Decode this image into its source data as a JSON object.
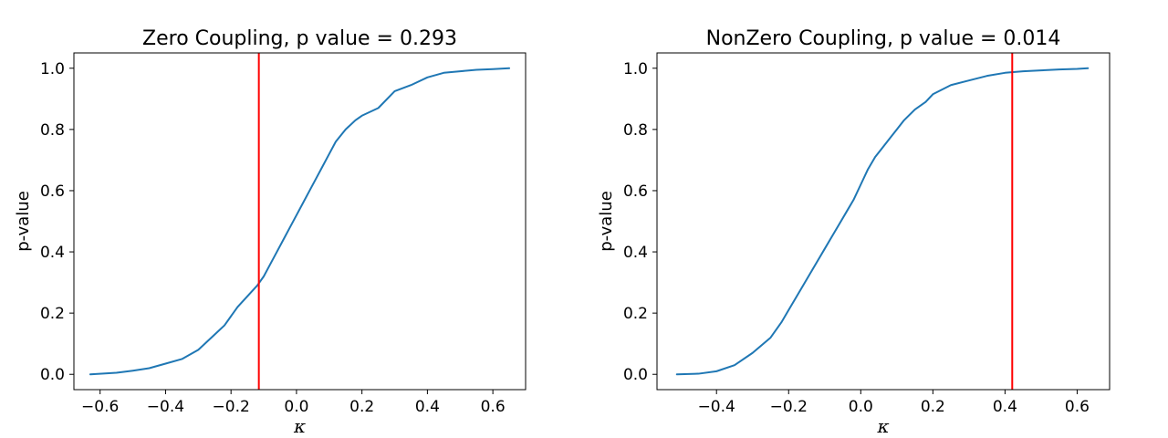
{
  "chart_data": [
    {
      "type": "line",
      "title": "Zero Coupling, p value = 0.293",
      "xlabel": "κ",
      "ylabel": "p-value",
      "xlim": [
        -0.68,
        0.7
      ],
      "ylim": [
        -0.05,
        1.05
      ],
      "xticks": [
        -0.6,
        -0.4,
        -0.2,
        0.0,
        0.2,
        0.4,
        0.6
      ],
      "xtick_labels": [
        "−0.6",
        "−0.4",
        "−0.2",
        "0.0",
        "0.2",
        "0.4",
        "0.6"
      ],
      "yticks": [
        0.0,
        0.2,
        0.4,
        0.6,
        0.8,
        1.0
      ],
      "ytick_labels": [
        "0.0",
        "0.2",
        "0.4",
        "0.6",
        "0.8",
        "1.0"
      ],
      "grid": false,
      "series": [
        {
          "color": "#1f77b4",
          "x": [
            -0.63,
            -0.55,
            -0.5,
            -0.45,
            -0.4,
            -0.35,
            -0.3,
            -0.25,
            -0.22,
            -0.2,
            -0.18,
            -0.15,
            -0.12,
            -0.1,
            -0.08,
            -0.06,
            -0.04,
            -0.02,
            0.0,
            0.02,
            0.04,
            0.06,
            0.08,
            0.1,
            0.12,
            0.15,
            0.18,
            0.2,
            0.25,
            0.3,
            0.35,
            0.4,
            0.45,
            0.5,
            0.55,
            0.6,
            0.65
          ],
          "y": [
            0.0,
            0.005,
            0.012,
            0.02,
            0.035,
            0.05,
            0.08,
            0.13,
            0.16,
            0.19,
            0.22,
            0.255,
            0.29,
            0.32,
            0.36,
            0.4,
            0.44,
            0.48,
            0.52,
            0.56,
            0.6,
            0.64,
            0.68,
            0.72,
            0.76,
            0.8,
            0.83,
            0.845,
            0.87,
            0.925,
            0.945,
            0.97,
            0.985,
            0.99,
            0.995,
            0.997,
            1.0
          ]
        }
      ],
      "vline": {
        "x": -0.115,
        "color": "#ff0000"
      }
    },
    {
      "type": "line",
      "title": "NonZero Coupling, p value = 0.014",
      "xlabel": "κ",
      "ylabel": "p-value",
      "xlim": [
        -0.565,
        0.69
      ],
      "ylim": [
        -0.05,
        1.05
      ],
      "xticks": [
        -0.4,
        -0.2,
        0.0,
        0.2,
        0.4,
        0.6
      ],
      "xtick_labels": [
        "−0.4",
        "−0.2",
        "0.0",
        "0.2",
        "0.4",
        "0.6"
      ],
      "yticks": [
        0.0,
        0.2,
        0.4,
        0.6,
        0.8,
        1.0
      ],
      "ytick_labels": [
        "0.0",
        "0.2",
        "0.4",
        "0.6",
        "0.8",
        "1.0"
      ],
      "grid": false,
      "series": [
        {
          "color": "#1f77b4",
          "x": [
            -0.51,
            -0.45,
            -0.4,
            -0.35,
            -0.3,
            -0.25,
            -0.22,
            -0.2,
            -0.18,
            -0.15,
            -0.12,
            -0.1,
            -0.08,
            -0.06,
            -0.04,
            -0.02,
            0.0,
            0.02,
            0.04,
            0.06,
            0.08,
            0.1,
            0.12,
            0.15,
            0.18,
            0.2,
            0.25,
            0.3,
            0.35,
            0.4,
            0.45,
            0.5,
            0.55,
            0.6,
            0.63
          ],
          "y": [
            0.0,
            0.002,
            0.01,
            0.03,
            0.07,
            0.12,
            0.17,
            0.21,
            0.25,
            0.31,
            0.37,
            0.41,
            0.45,
            0.49,
            0.53,
            0.57,
            0.62,
            0.67,
            0.71,
            0.74,
            0.77,
            0.8,
            0.83,
            0.865,
            0.89,
            0.915,
            0.945,
            0.96,
            0.975,
            0.985,
            0.99,
            0.993,
            0.996,
            0.998,
            1.0
          ]
        }
      ],
      "vline": {
        "x": 0.42,
        "color": "#ff0000"
      }
    }
  ]
}
